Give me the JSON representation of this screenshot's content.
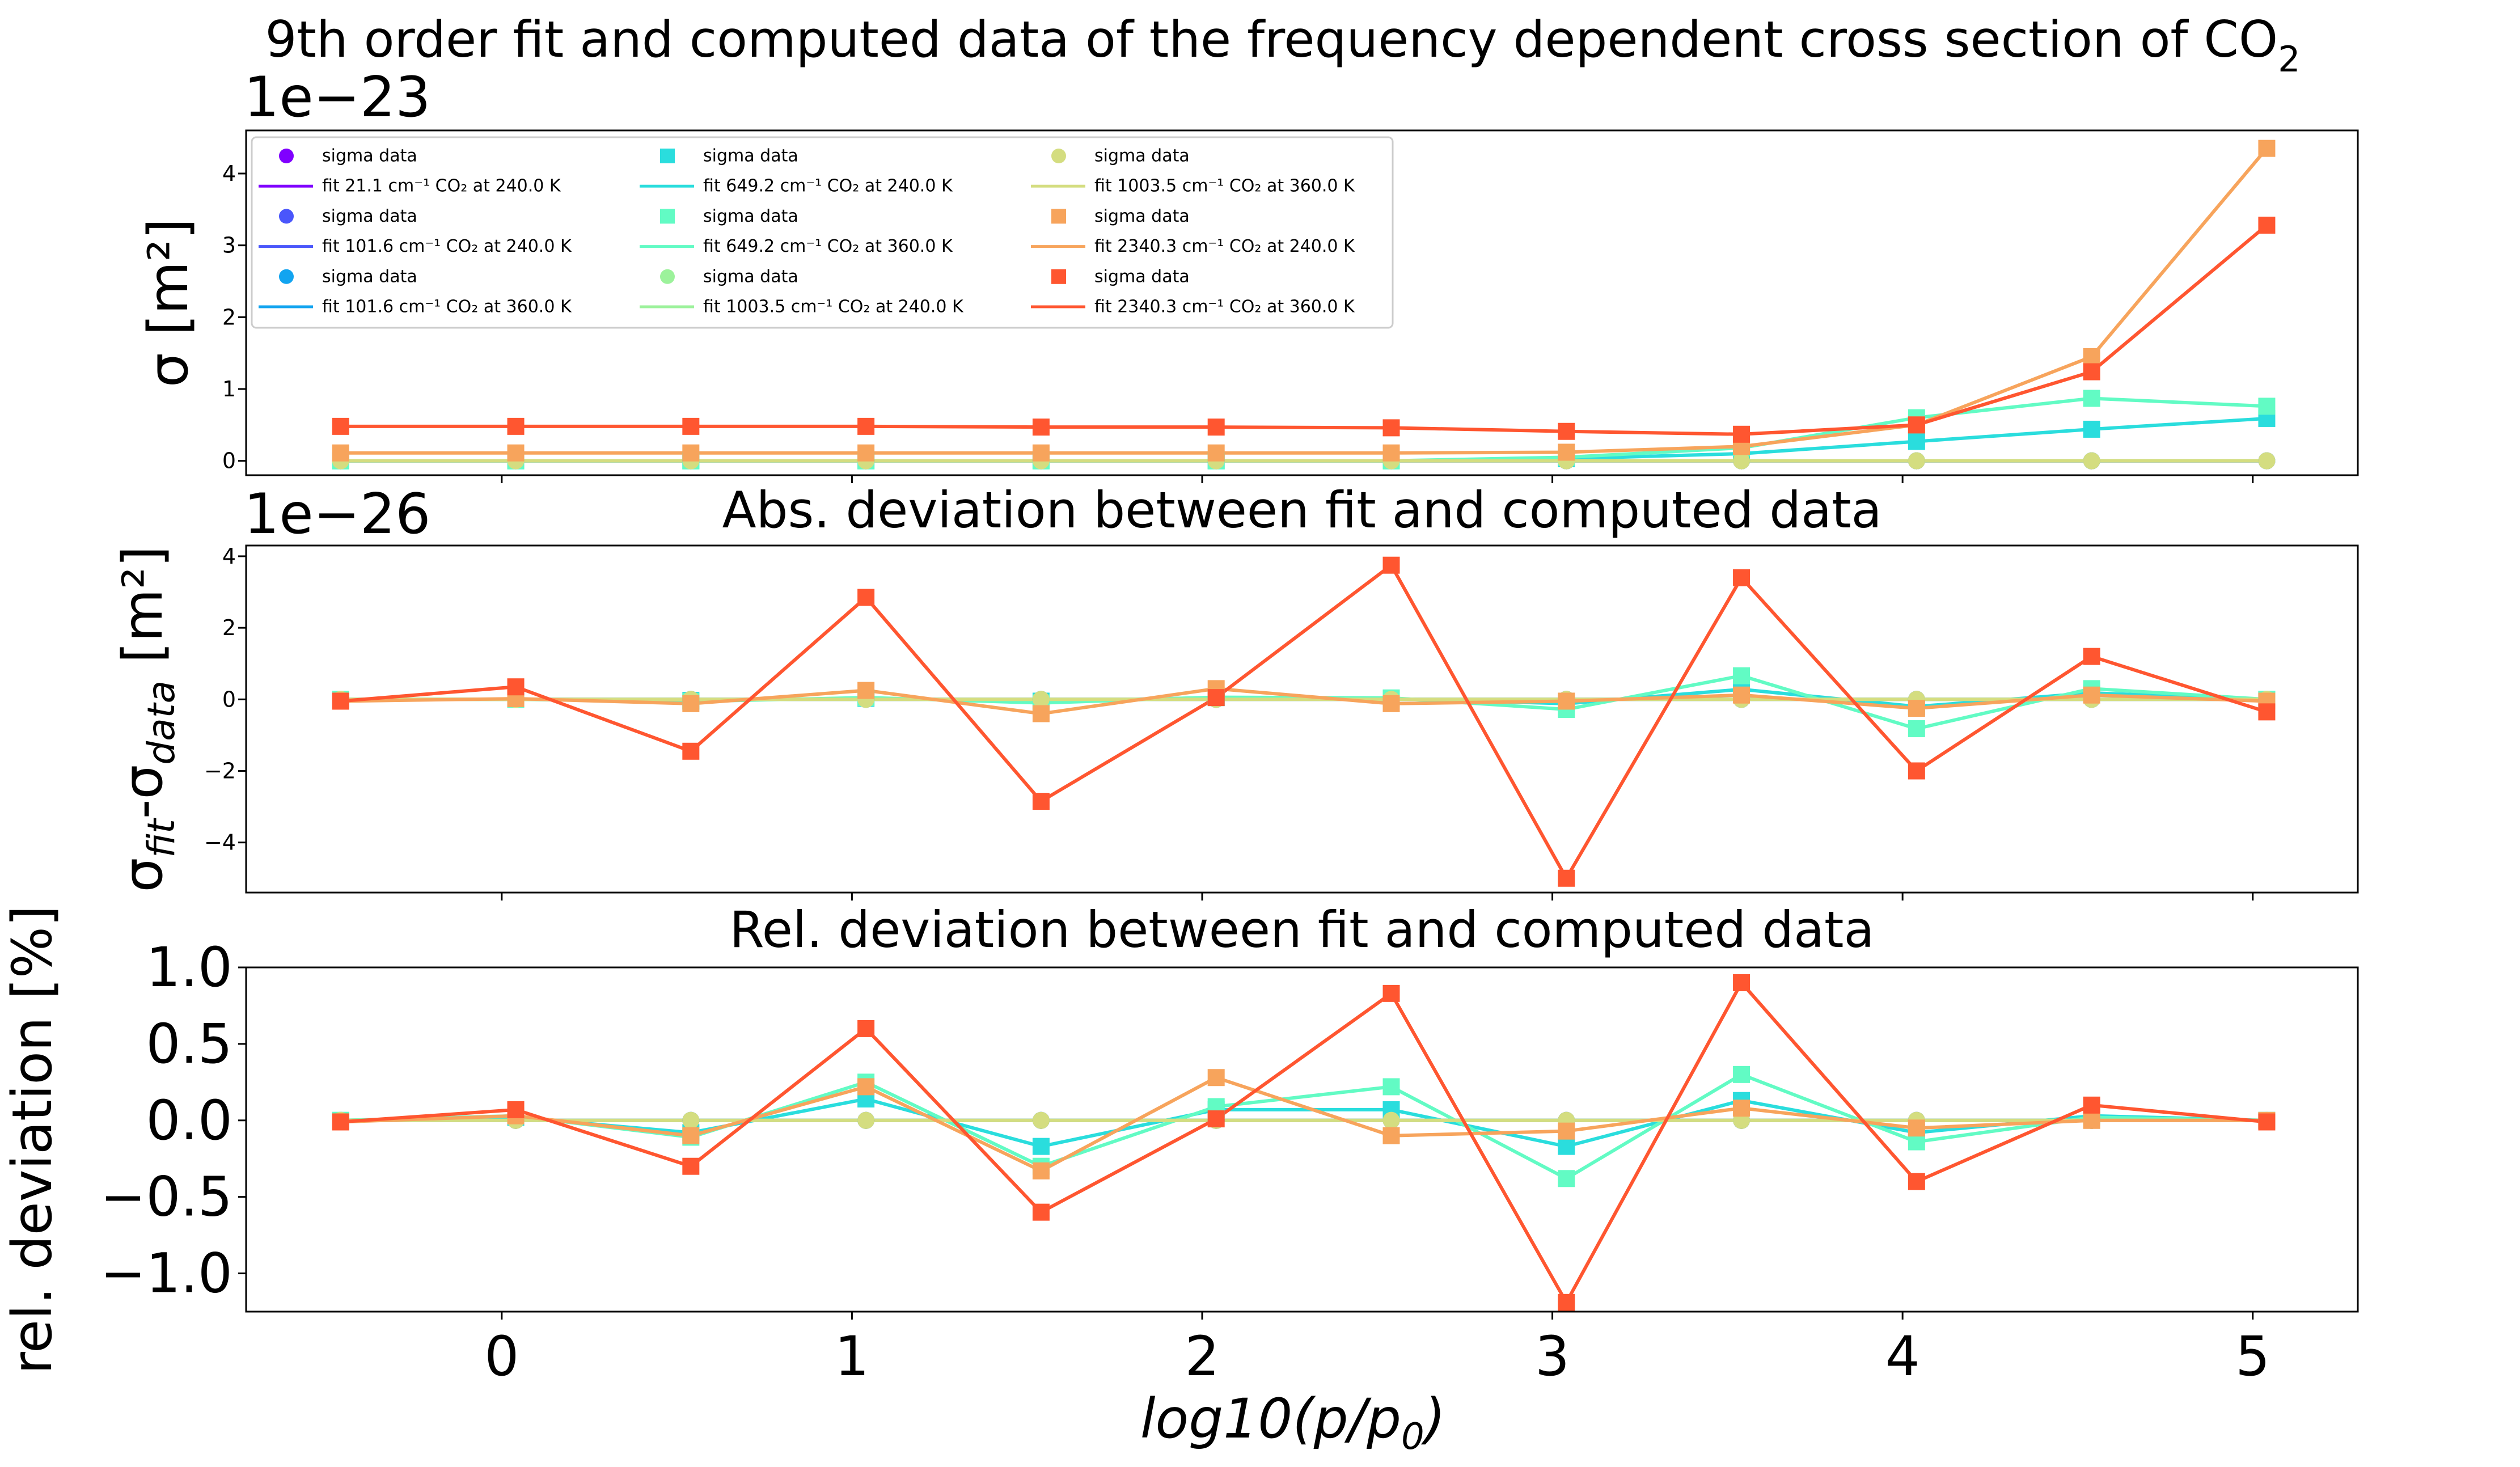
{
  "figure": {
    "suptitle": "9th order fit and computed data of the frequency dependent cross section of CO",
    "suptitle_subscript": "2",
    "xlabel_main": "log10(p/p",
    "xlabel_sub": "0",
    "xlabel_end": ")"
  },
  "legend": {
    "entries": [
      {
        "label": "sigma data",
        "kind": "marker",
        "marker": "circle",
        "color": "#8000ff"
      },
      {
        "label": "fit 21.1 cm⁻¹ CO₂ at 240.0 K",
        "kind": "line",
        "color": "#8000ff"
      },
      {
        "label": "sigma data",
        "kind": "marker",
        "marker": "circle",
        "color": "#4a56fb"
      },
      {
        "label": "fit 101.6 cm⁻¹ CO₂ at 240.0 K",
        "kind": "line",
        "color": "#4a56fb"
      },
      {
        "label": "sigma data",
        "kind": "marker",
        "marker": "circle",
        "color": "#12a4f0"
      },
      {
        "label": "fit 101.6 cm⁻¹ CO₂ at 360.0 K",
        "kind": "line",
        "color": "#12a4f0"
      },
      {
        "label": "sigma data",
        "kind": "marker",
        "marker": "square",
        "color": "#2adddd"
      },
      {
        "label": "fit 649.2 cm⁻¹ CO₂ at 240.0 K",
        "kind": "line",
        "color": "#2adddd"
      },
      {
        "label": "sigma data",
        "kind": "marker",
        "marker": "square",
        "color": "#62fbc4"
      },
      {
        "label": "fit 649.2 cm⁻¹ CO₂ at 360.0 K",
        "kind": "line",
        "color": "#62fbc4"
      },
      {
        "label": "sigma data",
        "kind": "marker",
        "marker": "circle",
        "color": "#9cf29b"
      },
      {
        "label": "fit 1003.5 cm⁻¹ CO₂ at 240.0 K",
        "kind": "line",
        "color": "#9cf29b"
      },
      {
        "label": "sigma data",
        "kind": "marker",
        "marker": "circle",
        "color": "#d4dd80"
      },
      {
        "label": "fit 1003.5 cm⁻¹ CO₂ at 360.0 K",
        "kind": "line",
        "color": "#d4dd80"
      },
      {
        "label": "sigma data",
        "kind": "marker",
        "marker": "square",
        "color": "#f7a45c"
      },
      {
        "label": "fit 2340.3 cm⁻¹ CO₂ at 240.0 K",
        "kind": "line",
        "color": "#f7a45c"
      },
      {
        "label": "sigma data",
        "kind": "marker",
        "marker": "square",
        "color": "#ff5630"
      },
      {
        "label": "fit 2340.3 cm⁻¹ CO₂ at 360.0 K",
        "kind": "line",
        "color": "#ff5630"
      }
    ]
  },
  "chart_data": [
    {
      "type": "line",
      "title": "",
      "offset_text": "1e−23",
      "ylabel": "σ [m²]",
      "ylim": [
        -0.2,
        4.6
      ],
      "yticks": [
        0,
        1,
        2,
        3,
        4
      ],
      "ytick_labels": [
        "0",
        "1",
        "2",
        "3",
        "4"
      ],
      "xlim": [
        -0.73,
        5.3
      ],
      "xticks": [
        0,
        1,
        2,
        3,
        4,
        5
      ],
      "x": [
        -0.46,
        0.04,
        0.54,
        1.04,
        1.54,
        2.04,
        2.54,
        3.04,
        3.54,
        4.04,
        4.54,
        5.04
      ],
      "series": [
        {
          "color": "#8000ff",
          "marker": "circle",
          "values": [
            0,
            0,
            0,
            0,
            0,
            0,
            0,
            0,
            0,
            0,
            0,
            0
          ]
        },
        {
          "color": "#4a56fb",
          "marker": "circle",
          "values": [
            0,
            0,
            0,
            0,
            0,
            0,
            0,
            0,
            0,
            0,
            0,
            0
          ]
        },
        {
          "color": "#12a4f0",
          "marker": "circle",
          "values": [
            0,
            0,
            0,
            0,
            0,
            0,
            0,
            0,
            0,
            0,
            0,
            0
          ]
        },
        {
          "color": "#2adddd",
          "marker": "square",
          "values": [
            0,
            0,
            0,
            0,
            0,
            0,
            0,
            0.03,
            0.1,
            0.27,
            0.44,
            0.59
          ]
        },
        {
          "color": "#62fbc4",
          "marker": "square",
          "values": [
            0,
            0,
            0,
            0,
            0,
            0,
            0,
            0.05,
            0.18,
            0.6,
            0.87,
            0.76
          ]
        },
        {
          "color": "#9cf29b",
          "marker": "circle",
          "values": [
            0,
            0,
            0,
            0,
            0,
            0,
            0,
            0,
            0,
            0,
            0,
            0
          ]
        },
        {
          "color": "#d4dd80",
          "marker": "circle",
          "values": [
            0,
            0,
            0,
            0,
            0,
            0,
            0,
            0,
            0,
            0,
            0,
            0
          ]
        },
        {
          "color": "#f7a45c",
          "marker": "square",
          "values": [
            0.11,
            0.11,
            0.11,
            0.11,
            0.11,
            0.11,
            0.11,
            0.12,
            0.2,
            0.5,
            1.45,
            4.35
          ]
        },
        {
          "color": "#ff5630",
          "marker": "square",
          "values": [
            0.48,
            0.48,
            0.48,
            0.48,
            0.47,
            0.47,
            0.46,
            0.41,
            0.37,
            0.5,
            1.24,
            3.28
          ]
        }
      ]
    },
    {
      "type": "line",
      "title": "Abs. deviation between fit and computed data",
      "offset_text": "1e−26",
      "ylabel": "σfit-σdata [m²]",
      "ylim": [
        -5.4,
        4.3
      ],
      "yticks": [
        -4,
        -2,
        0,
        2,
        4
      ],
      "ytick_labels": [
        "−4",
        "−2",
        "0",
        "2",
        "4"
      ],
      "xlim": [
        -0.73,
        5.3
      ],
      "xticks": [
        0,
        1,
        2,
        3,
        4,
        5
      ],
      "x": [
        -0.46,
        0.04,
        0.54,
        1.04,
        1.54,
        2.04,
        2.54,
        3.04,
        3.54,
        4.04,
        4.54,
        5.04
      ],
      "series": [
        {
          "color": "#8000ff",
          "marker": "circle",
          "values": [
            0,
            0,
            0,
            0,
            0,
            0,
            0,
            0,
            0,
            0,
            0,
            0
          ]
        },
        {
          "color": "#4a56fb",
          "marker": "circle",
          "values": [
            0,
            0,
            0,
            0,
            0,
            0,
            0,
            0,
            0,
            0,
            0,
            0
          ]
        },
        {
          "color": "#12a4f0",
          "marker": "circle",
          "values": [
            0,
            0,
            0,
            0,
            0,
            0,
            0,
            0,
            0,
            0,
            0,
            0
          ]
        },
        {
          "color": "#2adddd",
          "marker": "square",
          "values": [
            0,
            0,
            -0.03,
            0.03,
            -0.05,
            0.05,
            0.02,
            -0.12,
            0.28,
            -0.2,
            0.18,
            0
          ]
        },
        {
          "color": "#62fbc4",
          "marker": "square",
          "values": [
            0,
            0,
            -0.06,
            0.05,
            -0.1,
            0.06,
            0.04,
            -0.28,
            0.66,
            -0.82,
            0.3,
            0
          ]
        },
        {
          "color": "#9cf29b",
          "marker": "circle",
          "values": [
            0,
            0,
            0,
            0,
            0,
            0,
            0,
            0,
            0,
            0,
            0,
            0
          ]
        },
        {
          "color": "#d4dd80",
          "marker": "circle",
          "values": [
            0,
            0,
            0,
            0,
            0,
            0,
            0,
            0,
            0,
            0,
            0,
            0
          ]
        },
        {
          "color": "#f7a45c",
          "marker": "square",
          "values": [
            -0.05,
            0.02,
            -0.12,
            0.25,
            -0.4,
            0.3,
            -0.12,
            -0.05,
            0.12,
            -0.25,
            0.12,
            -0.05
          ]
        },
        {
          "color": "#ff5630",
          "marker": "square",
          "values": [
            -0.05,
            0.35,
            -1.45,
            2.85,
            -2.85,
            0.05,
            3.75,
            -5.0,
            3.4,
            -2.0,
            1.2,
            -0.35
          ]
        }
      ]
    },
    {
      "type": "line",
      "title": "Rel. deviation between fit and computed data",
      "offset_text": "",
      "ylabel": "rel. deviation [%]",
      "ylim": [
        -1.25,
        1.0
      ],
      "yticks": [
        -1.0,
        -0.5,
        0.0,
        0.5,
        1.0
      ],
      "ytick_labels": [
        "−1.0",
        "−0.5",
        "0.0",
        "0.5",
        "1.0"
      ],
      "xlim": [
        -0.73,
        5.3
      ],
      "xticks": [
        0,
        1,
        2,
        3,
        4,
        5
      ],
      "xtick_labels": [
        "0",
        "1",
        "2",
        "3",
        "4",
        "5"
      ],
      "xlabel": "log10(p/p0)",
      "x": [
        -0.46,
        0.04,
        0.54,
        1.04,
        1.54,
        2.04,
        2.54,
        3.04,
        3.54,
        4.04,
        4.54,
        5.04
      ],
      "series": [
        {
          "color": "#8000ff",
          "marker": "circle",
          "values": [
            0,
            0,
            0,
            0,
            0,
            0,
            0,
            0,
            0,
            0,
            0,
            0
          ]
        },
        {
          "color": "#4a56fb",
          "marker": "circle",
          "values": [
            0,
            0,
            0,
            0,
            0,
            0,
            0,
            0,
            0,
            0,
            0,
            0
          ]
        },
        {
          "color": "#12a4f0",
          "marker": "circle",
          "values": [
            0,
            0,
            0,
            0,
            0,
            0,
            0,
            0,
            0,
            0,
            0,
            0
          ]
        },
        {
          "color": "#2adddd",
          "marker": "square",
          "values": [
            0,
            0.02,
            -0.08,
            0.14,
            -0.17,
            0.07,
            0.07,
            -0.17,
            0.13,
            -0.08,
            0.03,
            0
          ]
        },
        {
          "color": "#62fbc4",
          "marker": "square",
          "values": [
            0,
            0.03,
            -0.11,
            0.25,
            -0.3,
            0.09,
            0.22,
            -0.38,
            0.3,
            -0.14,
            0.02,
            0
          ]
        },
        {
          "color": "#9cf29b",
          "marker": "circle",
          "values": [
            0,
            0,
            0,
            0,
            0,
            0,
            0,
            0,
            0,
            0,
            0,
            0
          ]
        },
        {
          "color": "#d4dd80",
          "marker": "circle",
          "values": [
            0,
            0,
            0,
            0,
            0,
            0,
            0,
            0,
            0,
            0,
            0,
            0
          ]
        },
        {
          "color": "#f7a45c",
          "marker": "square",
          "values": [
            -0.01,
            0.03,
            -0.1,
            0.22,
            -0.33,
            0.28,
            -0.1,
            -0.07,
            0.08,
            -0.05,
            0,
            0
          ]
        },
        {
          "color": "#ff5630",
          "marker": "square",
          "values": [
            -0.01,
            0.07,
            -0.3,
            0.6,
            -0.6,
            0.01,
            0.83,
            -1.19,
            0.9,
            -0.4,
            0.1,
            -0.01
          ]
        }
      ]
    }
  ]
}
